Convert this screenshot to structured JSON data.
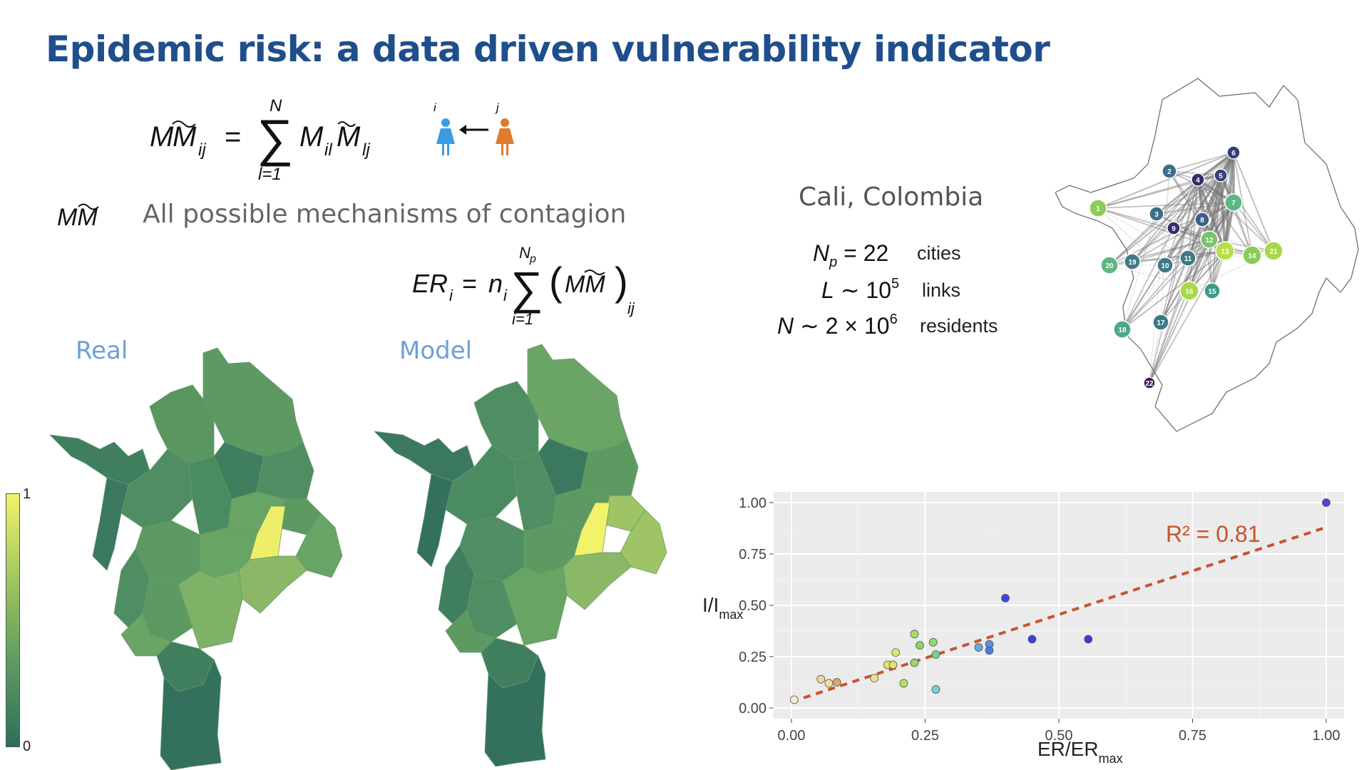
{
  "slide": {
    "title": "Epidemic risk: a data driven vulnerability indicator",
    "mm_description": "All possible mechanisms of contagion",
    "map_label_real": "Real",
    "map_label_model": "Model",
    "city_name": "Cali, Colombia",
    "stats": [
      {
        "math": "N_p = 22",
        "word": "cities"
      },
      {
        "math": "L ~ 10^5",
        "word": "links"
      },
      {
        "math": "N ~ 2×10^6",
        "word": "residents"
      }
    ],
    "colorbar": {
      "max_label": "1",
      "min_label": "0"
    },
    "person_i_label": "i",
    "person_j_label": "j",
    "colors": {
      "title": "#1f4e8c",
      "person_i": "#3b9be0",
      "person_j": "#e07a2e",
      "fit_line": "#c8532e"
    }
  },
  "network": {
    "nodes": [
      {
        "id": "1",
        "color": "#8ccc5a"
      },
      {
        "id": "2",
        "color": "#3d6e8c"
      },
      {
        "id": "3",
        "color": "#3d6e8c"
      },
      {
        "id": "4",
        "color": "#3b2a6e"
      },
      {
        "id": "5",
        "color": "#3b3f7a"
      },
      {
        "id": "6",
        "color": "#2f3f7a"
      },
      {
        "id": "7",
        "color": "#5cb880"
      },
      {
        "id": "8",
        "color": "#3d5f8c"
      },
      {
        "id": "9",
        "color": "#3b2a6e"
      },
      {
        "id": "10",
        "color": "#3d7a88"
      },
      {
        "id": "11",
        "color": "#3d7a88"
      },
      {
        "id": "12",
        "color": "#7ac46a"
      },
      {
        "id": "13",
        "color": "#b8e04a"
      },
      {
        "id": "14",
        "color": "#8ccc5a"
      },
      {
        "id": "15",
        "color": "#3d9a88"
      },
      {
        "id": "16",
        "color": "#a8d84a"
      },
      {
        "id": "17",
        "color": "#3d7a88"
      },
      {
        "id": "18",
        "color": "#4ca88a"
      },
      {
        "id": "19",
        "color": "#3d7a88"
      },
      {
        "id": "20",
        "color": "#5cb880"
      },
      {
        "id": "21",
        "color": "#a8d84a"
      },
      {
        "id": "22",
        "color": "#3b1a5e"
      }
    ]
  },
  "chart_data": {
    "type": "scatter",
    "xlabel": "ER/ER",
    "xlabel_sub": "max",
    "ylabel": "I/I",
    "ylabel_sub": "max",
    "xlim": [
      0,
      1
    ],
    "ylim": [
      0,
      1
    ],
    "xticks": [
      "0.00",
      "0.25",
      "0.50",
      "0.75",
      "1.00"
    ],
    "yticks": [
      "0.00",
      "0.25",
      "0.50",
      "0.75",
      "1.00"
    ],
    "grid": true,
    "annotation": "R² = 0.81",
    "fit_line": {
      "x0": 0.0,
      "y0": 0.03,
      "x1": 1.0,
      "y1": 0.88
    },
    "points": [
      {
        "x": 0.005,
        "y": 0.04,
        "color": "#f3ead0"
      },
      {
        "x": 0.055,
        "y": 0.14,
        "color": "#e9d9a0"
      },
      {
        "x": 0.07,
        "y": 0.12,
        "color": "#f0e29a"
      },
      {
        "x": 0.085,
        "y": 0.125,
        "color": "#d9a864"
      },
      {
        "x": 0.155,
        "y": 0.145,
        "color": "#eadf8c"
      },
      {
        "x": 0.18,
        "y": 0.21,
        "color": "#e6e66a"
      },
      {
        "x": 0.19,
        "y": 0.21,
        "color": "#e0e070"
      },
      {
        "x": 0.195,
        "y": 0.27,
        "color": "#d8ea6a"
      },
      {
        "x": 0.21,
        "y": 0.12,
        "color": "#b8e060"
      },
      {
        "x": 0.23,
        "y": 0.36,
        "color": "#a6dc60"
      },
      {
        "x": 0.23,
        "y": 0.22,
        "color": "#9ad46a"
      },
      {
        "x": 0.24,
        "y": 0.305,
        "color": "#8ed46a"
      },
      {
        "x": 0.265,
        "y": 0.32,
        "color": "#8edc70"
      },
      {
        "x": 0.27,
        "y": 0.26,
        "color": "#7ad080"
      },
      {
        "x": 0.27,
        "y": 0.09,
        "color": "#7ad0d0"
      },
      {
        "x": 0.35,
        "y": 0.295,
        "color": "#6aa8e0"
      },
      {
        "x": 0.37,
        "y": 0.31,
        "color": "#5a8ee0"
      },
      {
        "x": 0.37,
        "y": 0.28,
        "color": "#4a7ae0"
      },
      {
        "x": 0.4,
        "y": 0.535,
        "color": "#3a4ae0"
      },
      {
        "x": 0.45,
        "y": 0.335,
        "color": "#3a44d8"
      },
      {
        "x": 0.555,
        "y": 0.335,
        "color": "#3a3ce0"
      },
      {
        "x": 1.0,
        "y": 1.0,
        "color": "#5a3ce0"
      }
    ]
  }
}
